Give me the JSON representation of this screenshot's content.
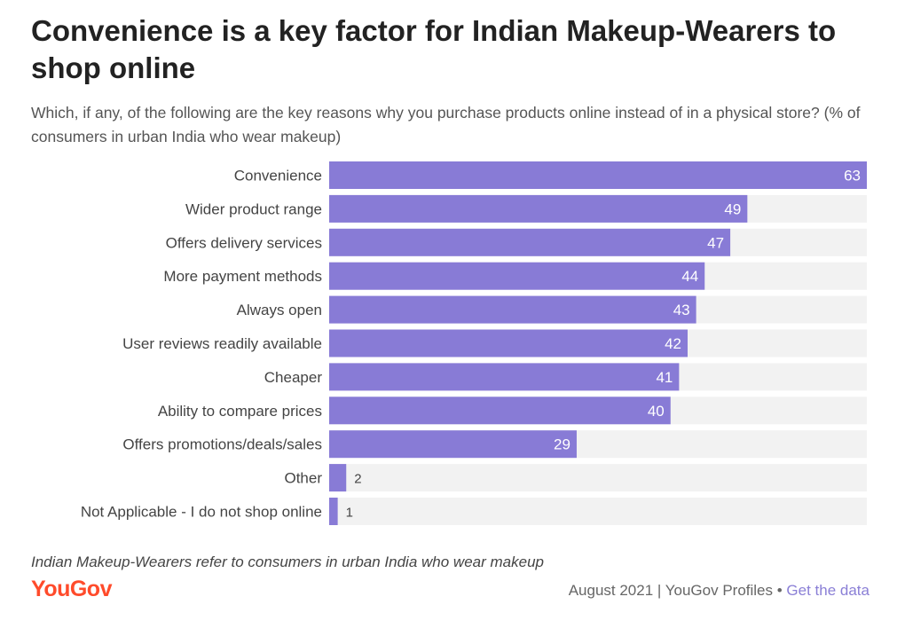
{
  "header": {
    "title": "Convenience is a key factor for Indian Makeup-Wearers to shop online",
    "subtitle": "Which, if any, of the following are the key reasons why you purchase products online instead of in a physical store? (% of consumers in urban India who wear makeup)"
  },
  "chart_data": {
    "type": "bar",
    "orientation": "horizontal",
    "categories": [
      "Convenience",
      "Wider product range",
      "Offers delivery services",
      "More payment methods",
      "Always open",
      "User reviews readily available",
      "Cheaper",
      "Ability to compare prices",
      "Offers promotions/deals/sales",
      "Other",
      "Not Applicable - I do not shop online"
    ],
    "values": [
      63,
      49,
      47,
      44,
      43,
      42,
      41,
      40,
      29,
      2,
      1
    ],
    "xlim": [
      0,
      63
    ],
    "unit": "%",
    "colors": {
      "bar": "#887bd6",
      "track": "#f2f2f2",
      "label_inside": "#ffffff",
      "label_outside": "#444444"
    }
  },
  "footer": {
    "note": "Indian Makeup-Wearers refer to consumers in urban India who wear makeup",
    "logo": "YouGov",
    "source": "August 2021 | YouGov Profiles",
    "separator": "•",
    "link": "Get the data",
    "logo_color": "#ff4b2b",
    "link_color": "#8a7fd6"
  }
}
